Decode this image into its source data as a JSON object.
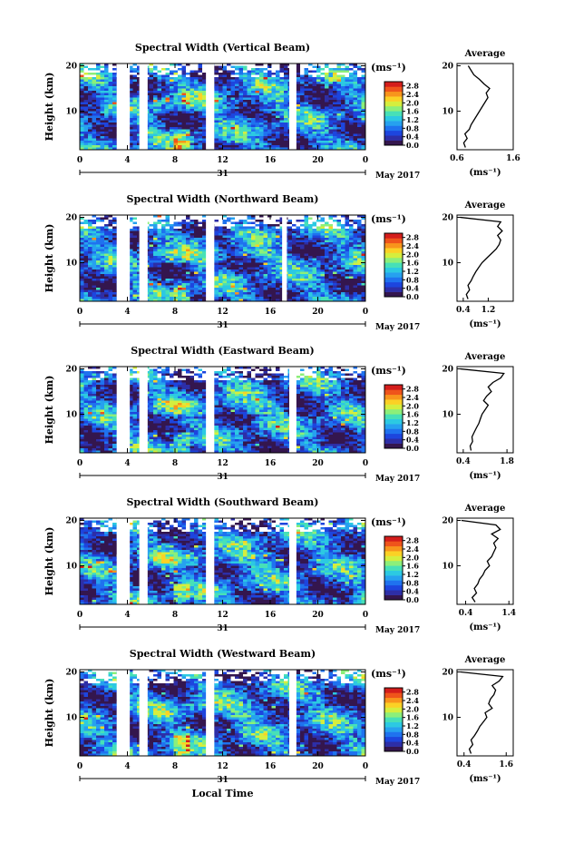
{
  "figure": {
    "date_label": "May 2017",
    "day_label": "31",
    "xlabel": "Local Time",
    "ylabel": "Height (km)",
    "cb_unit": "(ms⁻¹)",
    "avg_title": "Average",
    "avg_xlabel": "(ms⁻¹)",
    "colormap": [
      "#34164e",
      "#2d2ea7",
      "#1d45de",
      "#1f72ef",
      "#26a1ef",
      "#2cc9e2",
      "#47e0b7",
      "#8cef7a",
      "#d5ee3e",
      "#fbd125",
      "#f8951c",
      "#ef541b",
      "#d41d1b"
    ],
    "missing_color": "#ffffff"
  },
  "chart_data": [
    {
      "type": "heatmap",
      "title": "Spectral Width (Vertical Beam)",
      "x_ticks": [
        "0",
        "4",
        "8",
        "12",
        "16",
        "20",
        "0"
      ],
      "xlim": [
        0,
        24
      ],
      "y_ticks": [
        "10",
        "20"
      ],
      "ylim": [
        1.5,
        20.5
      ],
      "colorbar": {
        "min": 0.0,
        "max": 3.0,
        "ticks": [
          "2.8",
          "2.4",
          "2.0",
          "1.6",
          "1.2",
          "0.8",
          "0.4",
          "0.0"
        ]
      },
      "data_gaps_hours": [
        [
          3.1,
          4.2
        ],
        [
          5.0,
          5.7
        ],
        [
          10.6,
          11.3
        ],
        [
          17.6,
          18.2
        ]
      ],
      "profile": {
        "title": "Average",
        "xlim": [
          0.6,
          1.6
        ],
        "x_ticks": [
          "0.6",
          "1.6"
        ],
        "y_ticks": [
          "10",
          "20"
        ],
        "height_km": [
          2,
          3,
          4,
          5,
          6,
          7,
          8,
          9,
          10,
          11,
          12,
          13,
          14,
          15,
          16,
          17,
          18,
          19,
          20
        ],
        "values": [
          0.75,
          0.72,
          0.78,
          0.74,
          0.82,
          0.85,
          0.9,
          0.95,
          1.0,
          1.05,
          1.1,
          1.15,
          1.12,
          1.18,
          1.08,
          1.0,
          0.9,
          0.85,
          0.8
        ]
      }
    },
    {
      "type": "heatmap",
      "title": "Spectral Width (Northward Beam)",
      "x_ticks": [
        "0",
        "4",
        "8",
        "12",
        "16",
        "20",
        "0"
      ],
      "xlim": [
        0,
        24
      ],
      "y_ticks": [
        "10",
        "20"
      ],
      "ylim": [
        1.5,
        20.5
      ],
      "colorbar": {
        "min": 0.0,
        "max": 3.0,
        "ticks": [
          "2.8",
          "2.4",
          "2.0",
          "1.6",
          "1.2",
          "0.8",
          "0.4",
          "0.0"
        ]
      },
      "data_gaps_hours": [
        [
          3.1,
          4.2
        ],
        [
          5.0,
          5.7
        ],
        [
          10.6,
          11.3
        ],
        [
          17.0,
          17.4
        ]
      ],
      "profile": {
        "title": "Average",
        "xlim": [
          0.2,
          2.0
        ],
        "x_ticks": [
          "0.4",
          "1.2"
        ],
        "y_ticks": [
          "10",
          "20"
        ],
        "height_km": [
          2,
          3,
          4,
          5,
          6,
          7,
          8,
          9,
          10,
          11,
          12,
          13,
          14,
          15,
          16,
          17,
          18,
          19,
          20
        ],
        "values": [
          0.55,
          0.5,
          0.6,
          0.55,
          0.65,
          0.72,
          0.8,
          0.9,
          1.0,
          1.15,
          1.3,
          1.45,
          1.55,
          1.6,
          1.5,
          1.65,
          1.5,
          1.6,
          0.3
        ]
      }
    },
    {
      "type": "heatmap",
      "title": "Spectral Width (Eastward Beam)",
      "x_ticks": [
        "0",
        "4",
        "8",
        "12",
        "16",
        "20",
        "0"
      ],
      "xlim": [
        0,
        24
      ],
      "y_ticks": [
        "10",
        "20"
      ],
      "ylim": [
        1.5,
        20.5
      ],
      "colorbar": {
        "min": 0.0,
        "max": 3.0,
        "ticks": [
          "2.8",
          "2.4",
          "2.0",
          "1.6",
          "1.2",
          "0.8",
          "0.4",
          "0.0"
        ]
      },
      "data_gaps_hours": [
        [
          3.1,
          4.2
        ],
        [
          5.0,
          5.7
        ],
        [
          10.6,
          11.3
        ],
        [
          17.6,
          18.2
        ]
      ],
      "profile": {
        "title": "Average",
        "xlim": [
          0.2,
          2.0
        ],
        "x_ticks": [
          "0.4",
          "1.8"
        ],
        "y_ticks": [
          "10",
          "20"
        ],
        "height_km": [
          2,
          3,
          4,
          5,
          6,
          7,
          8,
          9,
          10,
          11,
          12,
          13,
          14,
          15,
          16,
          17,
          18,
          19,
          20
        ],
        "values": [
          0.65,
          0.62,
          0.7,
          0.68,
          0.75,
          0.82,
          0.9,
          0.95,
          1.0,
          1.1,
          1.2,
          1.05,
          1.15,
          1.3,
          1.2,
          1.35,
          1.6,
          1.7,
          0.3
        ]
      }
    },
    {
      "type": "heatmap",
      "title": "Spectral Width (Southward Beam)",
      "x_ticks": [
        "0",
        "4",
        "8",
        "12",
        "16",
        "20",
        "0"
      ],
      "xlim": [
        0,
        24
      ],
      "y_ticks": [
        "10",
        "20"
      ],
      "ylim": [
        1.5,
        20.5
      ],
      "colorbar": {
        "min": 0.0,
        "max": 3.0,
        "ticks": [
          "2.8",
          "2.4",
          "2.0",
          "1.6",
          "1.2",
          "0.8",
          "0.4",
          "0.0"
        ]
      },
      "data_gaps_hours": [
        [
          3.1,
          4.2
        ],
        [
          5.0,
          5.7
        ],
        [
          10.6,
          11.3
        ],
        [
          17.6,
          18.2
        ]
      ],
      "profile": {
        "title": "Average",
        "xlim": [
          0.2,
          1.5
        ],
        "x_ticks": [
          "0.4",
          "1.4"
        ],
        "y_ticks": [
          "10",
          "20"
        ],
        "height_km": [
          2,
          3,
          4,
          5,
          6,
          7,
          8,
          9,
          10,
          11,
          12,
          13,
          14,
          15,
          16,
          17,
          18,
          19,
          20
        ],
        "values": [
          0.62,
          0.55,
          0.65,
          0.6,
          0.68,
          0.72,
          0.8,
          0.85,
          0.95,
          0.9,
          1.0,
          1.05,
          1.1,
          1.05,
          1.15,
          1.0,
          1.2,
          1.1,
          0.3
        ]
      }
    },
    {
      "type": "heatmap",
      "title": "Spectral Width (Westward Beam)",
      "x_ticks": [
        "0",
        "4",
        "8",
        "12",
        "16",
        "20",
        "0"
      ],
      "xlim": [
        0,
        24
      ],
      "y_ticks": [
        "10",
        "20"
      ],
      "ylim": [
        1.5,
        20.5
      ],
      "colorbar": {
        "min": 0.0,
        "max": 3.0,
        "ticks": [
          "2.8",
          "2.4",
          "2.0",
          "1.6",
          "1.2",
          "0.8",
          "0.4",
          "0.0"
        ]
      },
      "data_gaps_hours": [
        [
          3.1,
          4.2
        ],
        [
          5.0,
          5.7
        ],
        [
          10.6,
          11.3
        ],
        [
          17.6,
          18.2
        ]
      ],
      "profile": {
        "title": "Average",
        "xlim": [
          0.2,
          1.8
        ],
        "x_ticks": [
          "0.4",
          "1.6"
        ],
        "y_ticks": [
          "10",
          "20"
        ],
        "height_km": [
          2,
          3,
          4,
          5,
          6,
          7,
          8,
          9,
          10,
          11,
          12,
          13,
          14,
          15,
          16,
          17,
          18,
          19,
          20
        ],
        "values": [
          0.6,
          0.55,
          0.65,
          0.6,
          0.7,
          0.78,
          0.85,
          0.95,
          1.05,
          1.0,
          1.2,
          1.1,
          1.15,
          1.25,
          1.3,
          1.2,
          1.4,
          1.5,
          0.3
        ]
      }
    }
  ]
}
